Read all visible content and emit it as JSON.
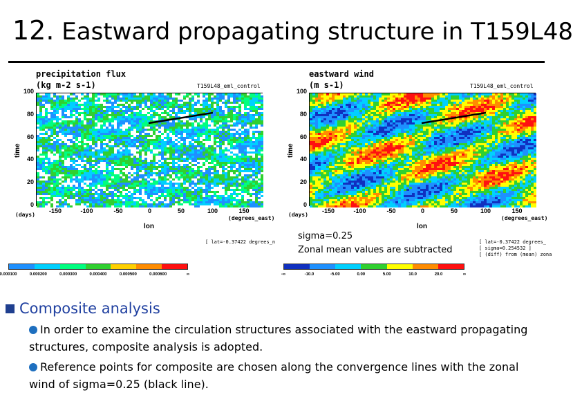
{
  "slide": {
    "title_number": "12.",
    "title_text": " Eastward propagating structure in T159L48"
  },
  "panels": {
    "left": {
      "title": "precipitation  flux",
      "units": "(kg m-2 s-1)",
      "run": "T159L48_eml_control",
      "yaxis_label": "time",
      "yunit": "(days)",
      "xaxis_label": "lon",
      "xunit": "(degrees_east)",
      "yticks": [
        "100",
        "80",
        "60",
        "40",
        "20",
        "0"
      ],
      "xticks": [
        "-150",
        "-100",
        "-50",
        "0",
        "50",
        "100",
        "150"
      ],
      "info_line1": "[ lat=-0.37422 degrees_n",
      "colorbar_labels": [
        "0.000100",
        "0.000200",
        "0.000300",
        "0.000400",
        "0.000500",
        "0.000600",
        "∞"
      ]
    },
    "right": {
      "title": "eastward  wind",
      "units": "(m s-1)",
      "run": "T159L48_eml_control",
      "yaxis_label": "time",
      "yunit": "(days)",
      "xaxis_label": "lon",
      "xunit": "(degrees_east)",
      "yticks": [
        "100",
        "80",
        "60",
        "40",
        "20",
        "0"
      ],
      "xticks": [
        "-150",
        "-100",
        "-50",
        "0",
        "50",
        "100",
        "150"
      ],
      "info_line1": "[ lat=-0.37422 degrees_",
      "info_line2": "[ sigma=0.254532 ]",
      "info_line3": "[ (diff) from (mean) zona",
      "colorbar_labels": [
        "-∞",
        "-10.0",
        "-5.00",
        "0.00",
        "5.00",
        "10.0",
        "20.0",
        "∞"
      ]
    }
  },
  "annotation": {
    "line1": "sigma=0.25",
    "line2": "Zonal mean values are subtracted"
  },
  "content": {
    "heading": "Composite analysis",
    "bullet1": "In order to examine the circulation structures associated with the eastward propagating structures, composite analysis is adopted.",
    "bullet2": "Reference points for composite are chosen along the convergence lines with the zonal wind of sigma=0.25 (black line)."
  },
  "colors": {
    "precip_scale": [
      "#1e90ff",
      "#00d0ff",
      "#00ff80",
      "#30d030",
      "#ffd000",
      "#ff8c00",
      "#ff1010"
    ],
    "wind_scale": [
      "#1030c0",
      "#1e90ff",
      "#00d0ff",
      "#30d030",
      "#ffff00",
      "#ff8c00",
      "#ff1010"
    ]
  }
}
